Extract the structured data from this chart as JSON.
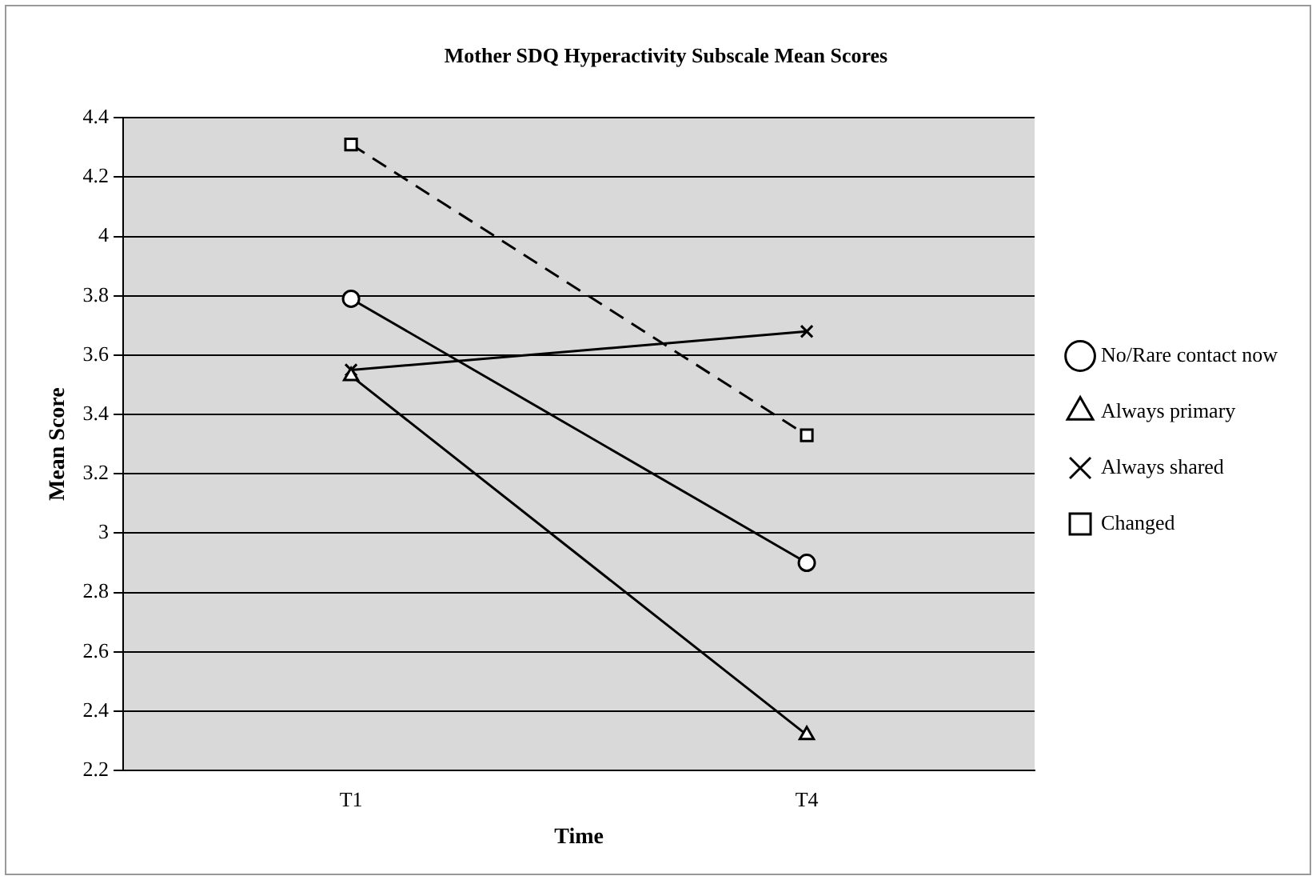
{
  "chart_data": {
    "type": "line",
    "title": "Mother SDQ Hyperactivity Subscale Mean Scores",
    "xlabel": "Time",
    "ylabel": "Mean Score",
    "categories": [
      "T1",
      "T4"
    ],
    "series": [
      {
        "name": "No/Rare contact now",
        "color": "#000000",
        "values": [
          3.79,
          2.9
        ],
        "marker": "circle",
        "line_style": "solid"
      },
      {
        "name": "Always primary",
        "color": "#000000",
        "values": [
          3.53,
          2.32
        ],
        "marker": "triangle",
        "line_style": "solid"
      },
      {
        "name": "Always shared",
        "color": "#000000",
        "values": [
          3.55,
          3.68
        ],
        "marker": "cross",
        "line_style": "solid"
      },
      {
        "name": "Changed",
        "color": "#000000",
        "values": [
          4.31,
          3.33
        ],
        "marker": "square",
        "line_style": "dashed"
      }
    ],
    "ylim": [
      2.2,
      4.4
    ],
    "yticks": [
      2.2,
      2.4,
      2.6,
      2.8,
      3,
      3.2,
      3.4,
      3.6,
      3.8,
      4,
      4.2,
      4.4
    ],
    "grid": "y",
    "legend": "right"
  }
}
